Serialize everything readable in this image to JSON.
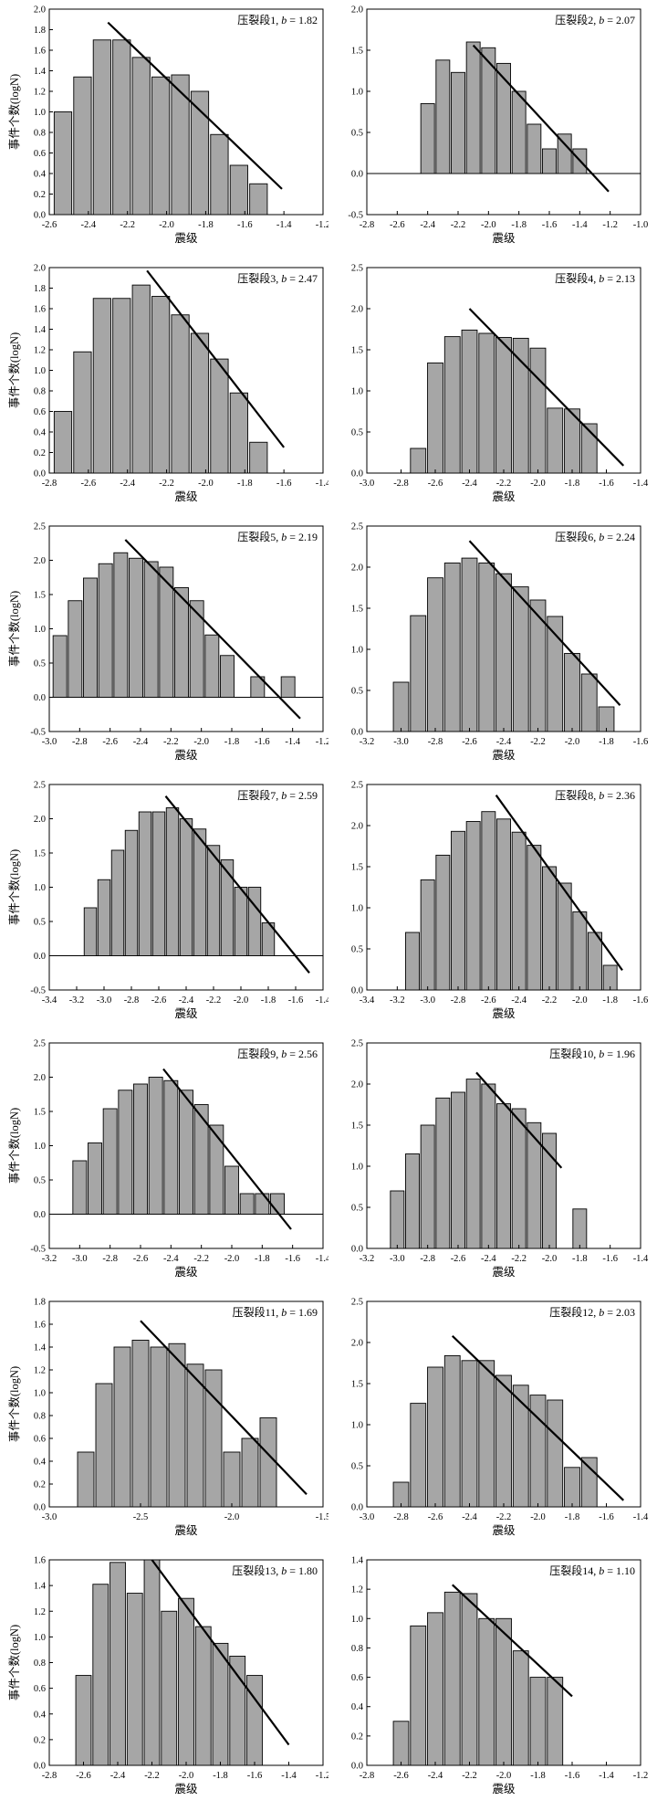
{
  "labels": {
    "xlabel": "震级",
    "ylabel": "事件个数(logN)"
  },
  "chart_data": [
    {
      "type": "bar",
      "label_prefix": "压裂段1, ",
      "b_symbol": "b",
      "b_value": "= 1.82",
      "xlim": [
        -2.6,
        -1.2
      ],
      "xticks": [
        -2.6,
        -2.4,
        -2.2,
        -2.0,
        -1.8,
        -1.6,
        -1.4,
        -1.2
      ],
      "ylim": [
        0,
        2.0
      ],
      "yticks": [
        0,
        0.2,
        0.4,
        0.6,
        0.8,
        1.0,
        1.2,
        1.4,
        1.6,
        1.8,
        2.0
      ],
      "bar_width": 0.09,
      "x": [
        -2.53,
        -2.43,
        -2.33,
        -2.23,
        -2.13,
        -2.03,
        -1.93,
        -1.83,
        -1.73,
        -1.63,
        -1.53
      ],
      "values": [
        1.0,
        1.34,
        1.7,
        1.7,
        1.53,
        1.34,
        1.36,
        1.2,
        0.78,
        0.48,
        0.3
      ],
      "fit_line": [
        [
          -2.3,
          1.87
        ],
        [
          -1.41,
          0.25
        ]
      ],
      "zero_line": false
    },
    {
      "type": "bar",
      "label_prefix": "压裂段2, ",
      "b_symbol": "b",
      "b_value": "= 2.07",
      "xlim": [
        -2.8,
        -1.0
      ],
      "xticks": [
        -2.8,
        -2.6,
        -2.4,
        -2.2,
        -2.0,
        -1.8,
        -1.6,
        -1.4,
        -1.2,
        -1.0
      ],
      "ylim": [
        -0.5,
        2.0
      ],
      "yticks": [
        -0.5,
        0,
        0.5,
        1.0,
        1.5,
        2.0
      ],
      "bar_width": 0.09,
      "x": [
        -2.4,
        -2.3,
        -2.2,
        -2.1,
        -2.0,
        -1.9,
        -1.8,
        -1.7,
        -1.6,
        -1.5,
        -1.4
      ],
      "values": [
        0.85,
        1.38,
        1.23,
        1.6,
        1.53,
        1.34,
        1.0,
        0.6,
        0.3,
        0.48,
        0.3
      ],
      "fit_line": [
        [
          -2.1,
          1.56
        ],
        [
          -1.21,
          -0.22
        ]
      ],
      "zero_line": true
    },
    {
      "type": "bar",
      "label_prefix": "压裂段3, ",
      "b_symbol": "b",
      "b_value": "= 2.47",
      "xlim": [
        -2.8,
        -1.4
      ],
      "xticks": [
        -2.8,
        -2.6,
        -2.4,
        -2.2,
        -2.0,
        -1.8,
        -1.6,
        -1.4
      ],
      "ylim": [
        0,
        2.0
      ],
      "yticks": [
        0,
        0.2,
        0.4,
        0.6,
        0.8,
        1.0,
        1.2,
        1.4,
        1.6,
        1.8,
        2.0
      ],
      "bar_width": 0.09,
      "x": [
        -2.73,
        -2.63,
        -2.53,
        -2.43,
        -2.33,
        -2.23,
        -2.13,
        -2.03,
        -1.93,
        -1.83,
        -1.73
      ],
      "values": [
        0.6,
        1.18,
        1.7,
        1.7,
        1.83,
        1.72,
        1.54,
        1.36,
        1.11,
        0.78,
        0.3
      ],
      "fit_line": [
        [
          -2.3,
          1.97
        ],
        [
          -1.6,
          0.25
        ]
      ],
      "zero_line": false
    },
    {
      "type": "bar",
      "label_prefix": "压裂段4, ",
      "b_symbol": "b",
      "b_value": "= 2.13",
      "xlim": [
        -3.0,
        -1.4
      ],
      "xticks": [
        -3.0,
        -2.8,
        -2.6,
        -2.4,
        -2.2,
        -2.0,
        -1.8,
        -1.6,
        -1.4
      ],
      "ylim": [
        0,
        2.5
      ],
      "yticks": [
        0,
        0.5,
        1.0,
        1.5,
        2.0,
        2.5
      ],
      "bar_width": 0.09,
      "x": [
        -2.7,
        -2.6,
        -2.5,
        -2.4,
        -2.3,
        -2.2,
        -2.1,
        -2.0,
        -1.9,
        -1.8,
        -1.7
      ],
      "values": [
        0.3,
        1.34,
        1.66,
        1.74,
        1.7,
        1.65,
        1.64,
        1.52,
        0.79,
        0.78,
        0.6
      ],
      "fit_line": [
        [
          -2.4,
          2.0
        ],
        [
          -1.5,
          0.09
        ]
      ],
      "zero_line": false
    },
    {
      "type": "bar",
      "label_prefix": "压裂段5, ",
      "b_symbol": "b",
      "b_value": "= 2.19",
      "xlim": [
        -3.0,
        -1.2
      ],
      "xticks": [
        -3.0,
        -2.8,
        -2.6,
        -2.4,
        -2.2,
        -2.0,
        -1.8,
        -1.6,
        -1.4,
        -1.2
      ],
      "ylim": [
        -0.5,
        2.5
      ],
      "yticks": [
        -0.5,
        0,
        0.5,
        1.0,
        1.5,
        2.0,
        2.5
      ],
      "bar_width": 0.09,
      "x": [
        -2.93,
        -2.83,
        -2.73,
        -2.63,
        -2.53,
        -2.43,
        -2.33,
        -2.23,
        -2.13,
        -2.03,
        -1.93,
        -1.83,
        -1.63,
        -1.43
      ],
      "values": [
        0.9,
        1.41,
        1.74,
        1.95,
        2.11,
        2.03,
        1.98,
        1.9,
        1.6,
        1.41,
        0.91,
        0.61,
        0.3,
        0.3
      ],
      "fit_line": [
        [
          -2.5,
          2.3
        ],
        [
          -1.35,
          -0.31
        ]
      ],
      "zero_line": true
    },
    {
      "type": "bar",
      "label_prefix": "压裂段6, ",
      "b_symbol": "b",
      "b_value": "= 2.24",
      "xlim": [
        -3.2,
        -1.6
      ],
      "xticks": [
        -3.2,
        -3.0,
        -2.8,
        -2.6,
        -2.4,
        -2.2,
        -2.0,
        -1.8,
        -1.6
      ],
      "ylim": [
        0,
        2.5
      ],
      "yticks": [
        0,
        0.5,
        1.0,
        1.5,
        2.0,
        2.5
      ],
      "bar_width": 0.09,
      "x": [
        -3.0,
        -2.9,
        -2.8,
        -2.7,
        -2.6,
        -2.5,
        -2.4,
        -2.3,
        -2.2,
        -2.1,
        -2.0,
        -1.9,
        -1.8
      ],
      "values": [
        0.6,
        1.41,
        1.87,
        2.05,
        2.11,
        2.05,
        1.92,
        1.76,
        1.6,
        1.4,
        0.95,
        0.7,
        0.3
      ],
      "fit_line": [
        [
          -2.6,
          2.32
        ],
        [
          -1.72,
          0.32
        ]
      ],
      "zero_line": false
    },
    {
      "type": "bar",
      "label_prefix": "压裂段7, ",
      "b_symbol": "b",
      "b_value": "= 2.59",
      "xlim": [
        -3.4,
        -1.4
      ],
      "xticks": [
        -3.4,
        -3.2,
        -3.0,
        -2.8,
        -2.6,
        -2.4,
        -2.2,
        -2.0,
        -1.8,
        -1.6,
        -1.4
      ],
      "ylim": [
        -0.5,
        2.5
      ],
      "yticks": [
        -0.5,
        0,
        0.5,
        1.0,
        1.5,
        2.0,
        2.5
      ],
      "bar_width": 0.09,
      "x": [
        -3.1,
        -3.0,
        -2.9,
        -2.8,
        -2.7,
        -2.6,
        -2.5,
        -2.4,
        -2.3,
        -2.2,
        -2.1,
        -2.0,
        -1.9,
        -1.8
      ],
      "values": [
        0.7,
        1.11,
        1.54,
        1.83,
        2.1,
        2.1,
        2.16,
        2.0,
        1.85,
        1.61,
        1.4,
        1.0,
        1.0,
        0.48
      ],
      "fit_line": [
        [
          -2.55,
          2.33
        ],
        [
          -1.5,
          -0.25
        ]
      ],
      "zero_line": true
    },
    {
      "type": "bar",
      "label_prefix": "压裂段8, ",
      "b_symbol": "b",
      "b_value": "= 2.36",
      "xlim": [
        -3.4,
        -1.6
      ],
      "xticks": [
        -3.4,
        -3.2,
        -3.0,
        -2.8,
        -2.6,
        -2.4,
        -2.2,
        -2.0,
        -1.8,
        -1.6
      ],
      "ylim": [
        0,
        2.5
      ],
      "yticks": [
        0,
        0.5,
        1.0,
        1.5,
        2.0,
        2.5
      ],
      "bar_width": 0.09,
      "x": [
        -3.1,
        -3.0,
        -2.9,
        -2.8,
        -2.7,
        -2.6,
        -2.5,
        -2.4,
        -2.3,
        -2.2,
        -2.1,
        -2.0,
        -1.9,
        -1.8
      ],
      "values": [
        0.7,
        1.34,
        1.64,
        1.93,
        2.05,
        2.17,
        2.08,
        1.92,
        1.76,
        1.5,
        1.3,
        0.95,
        0.7,
        0.3
      ],
      "fit_line": [
        [
          -2.55,
          2.37
        ],
        [
          -1.72,
          0.24
        ]
      ],
      "zero_line": false
    },
    {
      "type": "bar",
      "label_prefix": "压裂段9, ",
      "b_symbol": "b",
      "b_value": "= 2.56",
      "xlim": [
        -3.2,
        -1.4
      ],
      "xticks": [
        -3.2,
        -3.0,
        -2.8,
        -2.6,
        -2.4,
        -2.2,
        -2.0,
        -1.8,
        -1.6,
        -1.4
      ],
      "ylim": [
        -0.5,
        2.5
      ],
      "yticks": [
        -0.5,
        0,
        0.5,
        1.0,
        1.5,
        2.0,
        2.5
      ],
      "bar_width": 0.09,
      "x": [
        -3.0,
        -2.9,
        -2.8,
        -2.7,
        -2.6,
        -2.5,
        -2.4,
        -2.3,
        -2.2,
        -2.1,
        -2.0,
        -1.9,
        -1.8,
        -1.7
      ],
      "values": [
        0.78,
        1.04,
        1.54,
        1.81,
        1.9,
        2.0,
        1.95,
        1.81,
        1.6,
        1.3,
        0.7,
        0.3,
        0.3,
        0.3
      ],
      "fit_line": [
        [
          -2.45,
          2.12
        ],
        [
          -1.61,
          -0.22
        ]
      ],
      "zero_line": true
    },
    {
      "type": "bar",
      "label_prefix": "压裂段10, ",
      "b_symbol": "b",
      "b_value": "= 1.96",
      "xlim": [
        -3.2,
        -1.4
      ],
      "xticks": [
        -3.2,
        -3.0,
        -2.8,
        -2.6,
        -2.4,
        -2.2,
        -2.0,
        -1.8,
        -1.6,
        -1.4
      ],
      "ylim": [
        0,
        2.5
      ],
      "yticks": [
        0,
        0.5,
        1.0,
        1.5,
        2.0,
        2.5
      ],
      "bar_width": 0.09,
      "x": [
        -3.0,
        -2.9,
        -2.8,
        -2.7,
        -2.6,
        -2.5,
        -2.4,
        -2.3,
        -2.2,
        -2.1,
        -2.0,
        -1.8
      ],
      "values": [
        0.7,
        1.15,
        1.5,
        1.83,
        1.9,
        2.06,
        2.0,
        1.76,
        1.7,
        1.53,
        1.4,
        0.48
      ],
      "fit_line": [
        [
          -2.48,
          2.14
        ],
        [
          -1.92,
          0.98
        ]
      ],
      "zero_line": false
    },
    {
      "type": "bar",
      "label_prefix": "压裂段11, ",
      "b_symbol": "b",
      "b_value": "= 1.69",
      "xlim": [
        -3.0,
        -1.5
      ],
      "xticks": [
        -3.0,
        -2.5,
        -2.0,
        -1.5
      ],
      "ylim": [
        0,
        1.8
      ],
      "yticks": [
        0,
        0.2,
        0.4,
        0.6,
        0.8,
        1.0,
        1.2,
        1.4,
        1.6,
        1.8
      ],
      "bar_width": 0.09,
      "x": [
        -2.8,
        -2.7,
        -2.6,
        -2.5,
        -2.4,
        -2.3,
        -2.2,
        -2.1,
        -2.0,
        -1.9,
        -1.8
      ],
      "values": [
        0.48,
        1.08,
        1.4,
        1.46,
        1.4,
        1.43,
        1.25,
        1.2,
        0.48,
        0.6,
        0.78
      ],
      "fit_line": [
        [
          -2.5,
          1.63
        ],
        [
          -1.59,
          0.11
        ]
      ],
      "zero_line": false
    },
    {
      "type": "bar",
      "label_prefix": "压裂段12, ",
      "b_symbol": "b",
      "b_value": "= 2.03",
      "xlim": [
        -3.0,
        -1.4
      ],
      "xticks": [
        -3.0,
        -2.8,
        -2.6,
        -2.4,
        -2.2,
        -2.0,
        -1.8,
        -1.6,
        -1.4
      ],
      "ylim": [
        0,
        2.5
      ],
      "yticks": [
        0,
        0.5,
        1.0,
        1.5,
        2.0,
        2.5
      ],
      "bar_width": 0.09,
      "x": [
        -2.8,
        -2.7,
        -2.6,
        -2.5,
        -2.4,
        -2.3,
        -2.2,
        -2.1,
        -2.0,
        -1.9,
        -1.8,
        -1.7
      ],
      "values": [
        0.3,
        1.26,
        1.7,
        1.84,
        1.78,
        1.78,
        1.6,
        1.48,
        1.36,
        1.3,
        0.48,
        0.6
      ],
      "fit_line": [
        [
          -2.5,
          2.08
        ],
        [
          -1.5,
          0.08
        ]
      ],
      "zero_line": false
    },
    {
      "type": "bar",
      "label_prefix": "压裂段13, ",
      "b_symbol": "b",
      "b_value": "= 1.80",
      "xlim": [
        -2.8,
        -1.2
      ],
      "xticks": [
        -2.8,
        -2.6,
        -2.4,
        -2.2,
        -2.0,
        -1.8,
        -1.6,
        -1.4,
        -1.2
      ],
      "ylim": [
        0,
        1.6
      ],
      "yticks": [
        0,
        0.2,
        0.4,
        0.6,
        0.8,
        1.0,
        1.2,
        1.4,
        1.6
      ],
      "bar_width": 0.09,
      "x": [
        -2.6,
        -2.5,
        -2.4,
        -2.3,
        -2.2,
        -2.1,
        -2.0,
        -1.9,
        -1.8,
        -1.7,
        -1.6
      ],
      "values": [
        0.7,
        1.41,
        1.58,
        1.34,
        1.6,
        1.2,
        1.3,
        1.08,
        0.95,
        0.85,
        0.7
      ],
      "fit_line": [
        [
          -2.2,
          1.6
        ],
        [
          -1.4,
          0.16
        ]
      ],
      "zero_line": false
    },
    {
      "type": "bar",
      "label_prefix": "压裂段14, ",
      "b_symbol": "b",
      "b_value": "= 1.10",
      "xlim": [
        -2.8,
        -1.2
      ],
      "xticks": [
        -2.8,
        -2.6,
        -2.4,
        -2.2,
        -2.0,
        -1.8,
        -1.6,
        -1.4,
        -1.2
      ],
      "ylim": [
        0,
        1.4
      ],
      "yticks": [
        0,
        0.2,
        0.4,
        0.6,
        0.8,
        1.0,
        1.2,
        1.4
      ],
      "bar_width": 0.09,
      "x": [
        -2.6,
        -2.5,
        -2.4,
        -2.3,
        -2.2,
        -2.1,
        -2.0,
        -1.9,
        -1.8,
        -1.7
      ],
      "values": [
        0.3,
        0.95,
        1.04,
        1.18,
        1.17,
        1.0,
        1.0,
        0.78,
        0.6,
        0.6
      ],
      "fit_line": [
        [
          -2.3,
          1.23
        ],
        [
          -1.6,
          0.47
        ]
      ],
      "zero_line": false
    }
  ]
}
